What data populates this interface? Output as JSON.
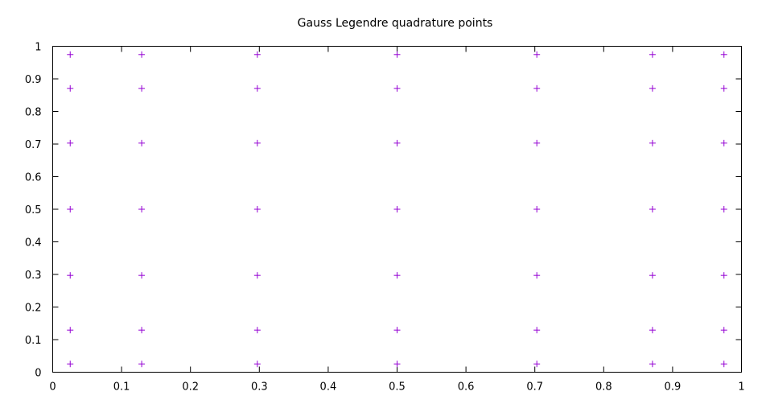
{
  "chart_data": {
    "type": "scatter",
    "title": "Gauss Legendre quadrature points",
    "xlabel": "",
    "ylabel": "",
    "xlim": [
      0,
      1
    ],
    "ylim": [
      0,
      1
    ],
    "grid": false,
    "marker": "plus",
    "marker_color": "#9400d3",
    "x_ticks": [
      "0",
      "0.1",
      "0.2",
      "0.3",
      "0.4",
      "0.5",
      "0.6",
      "0.7",
      "0.8",
      "0.9",
      "1"
    ],
    "y_ticks": [
      "0",
      "0.1",
      "0.2",
      "0.3",
      "0.4",
      "0.5",
      "0.6",
      "0.7",
      "0.8",
      "0.9",
      "1"
    ],
    "x_nodes": [
      0.0254,
      0.1292,
      0.2971,
      0.5,
      0.7029,
      0.8708,
      0.9746
    ],
    "y_nodes": [
      0.0254,
      0.1292,
      0.2971,
      0.5,
      0.7029,
      0.8708,
      0.9746
    ]
  }
}
